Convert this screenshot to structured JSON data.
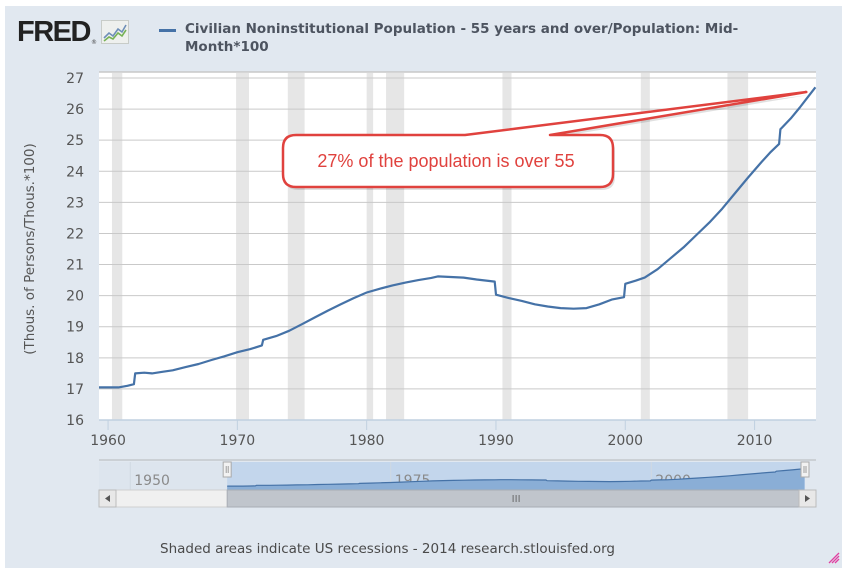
{
  "header": {
    "logo_text": "FRED",
    "logo_registered": "®",
    "logo_icon": "chart-line-icon",
    "legend_text": "Civilian Noninstitutional Population - 55 years and over/Population: Mid-Month*100"
  },
  "annotation": {
    "text": "27% of the population is over 55",
    "color": "#e0423e",
    "points_to": {
      "x": 2014.0,
      "y": 26.55
    }
  },
  "navigator": {
    "labels": [
      "1950",
      "1975",
      "2000"
    ],
    "label_years": [
      1950,
      1975,
      2000
    ],
    "range_start": 1947,
    "range_end": 2014.75,
    "selected_start": 1959.3,
    "selected_end": 2014.75,
    "scroll_left_icon": "arrow-left-icon",
    "scroll_right_icon": "arrow-right-icon",
    "scroll_grip_icon": "grip-icon",
    "handle_icon": "handle-grip-icon"
  },
  "footer": {
    "credits": "Shaded areas indicate US recessions - 2014 research.stlouisfed.org",
    "resize_icon": "resize-grip-icon"
  },
  "colors": {
    "series": "#4572a7",
    "recession": "#e6e6e6",
    "grid": "#c9c9c9",
    "background": "#e1e8f0",
    "callout": "#e0423e"
  },
  "chart_data": {
    "type": "line",
    "title": "Civilian Noninstitutional Population - 55 years and over/Population: Mid-Month*100",
    "xlabel": "",
    "ylabel": "(Thous. of Persons/Thous.*100)",
    "xlim": [
      1959.3,
      2014.75
    ],
    "ylim": [
      16,
      27
    ],
    "grid": true,
    "legend": "top",
    "x_ticks": [
      1960,
      1970,
      1980,
      1990,
      2000,
      2010
    ],
    "x_tick_labels": [
      "1960",
      "1970",
      "1980",
      "1990",
      "2000",
      "2010"
    ],
    "y_ticks": [
      16,
      17,
      18,
      19,
      20,
      21,
      22,
      23,
      24,
      25,
      26,
      27
    ],
    "y_tick_labels": [
      "16",
      "17",
      "18",
      "19",
      "20",
      "21",
      "22",
      "23",
      "24",
      "25",
      "26",
      "27"
    ],
    "recessions": [
      [
        1960.3,
        1961.1
      ],
      [
        1969.9,
        1970.9
      ],
      [
        1973.9,
        1975.2
      ],
      [
        1980.0,
        1980.5
      ],
      [
        1981.5,
        1982.9
      ],
      [
        1990.5,
        1991.2
      ],
      [
        2001.2,
        2001.9
      ],
      [
        2007.9,
        2009.5
      ]
    ],
    "series": [
      {
        "name": "Civilian Noninstitutional Population - 55 years and over/Population: Mid-Month*100",
        "x": [
          1959.3,
          1960.0,
          1960.8,
          1961.5,
          1962.0,
          1962.1,
          1962.8,
          1963.4,
          1964.2,
          1965.0,
          1966.0,
          1967.0,
          1968.0,
          1969.0,
          1970.0,
          1971.0,
          1971.9,
          1972.0,
          1973.0,
          1974.0,
          1975.0,
          1976.0,
          1977.0,
          1978.0,
          1979.0,
          1980.0,
          1981.0,
          1982.0,
          1983.0,
          1984.0,
          1985.0,
          1985.5,
          1986.5,
          1987.5,
          1988.5,
          1989.5,
          1989.9,
          1990.0,
          1991.0,
          1992.0,
          1993.0,
          1994.0,
          1995.0,
          1996.0,
          1997.0,
          1998.0,
          1999.0,
          1999.9,
          2000.0,
          2000.8,
          2001.5,
          2002.5,
          2003.5,
          2004.5,
          2005.5,
          2006.5,
          2007.5,
          2008.5,
          2009.5,
          2010.5,
          2011.2,
          2011.9,
          2012.0,
          2012.8,
          2013.5,
          2014.0,
          2014.7
        ],
        "y": [
          17.05,
          17.05,
          17.05,
          17.1,
          17.15,
          17.5,
          17.52,
          17.5,
          17.55,
          17.6,
          17.7,
          17.8,
          17.93,
          18.05,
          18.18,
          18.28,
          18.4,
          18.58,
          18.7,
          18.87,
          19.08,
          19.3,
          19.52,
          19.72,
          19.92,
          20.1,
          20.22,
          20.33,
          20.42,
          20.5,
          20.57,
          20.62,
          20.6,
          20.58,
          20.52,
          20.47,
          20.45,
          20.03,
          19.92,
          19.83,
          19.72,
          19.65,
          19.6,
          19.58,
          19.6,
          19.72,
          19.88,
          19.95,
          20.38,
          20.48,
          20.58,
          20.85,
          21.2,
          21.55,
          21.95,
          22.35,
          22.8,
          23.3,
          23.8,
          24.28,
          24.6,
          24.88,
          25.35,
          25.7,
          26.05,
          26.32,
          26.7
        ]
      }
    ]
  }
}
